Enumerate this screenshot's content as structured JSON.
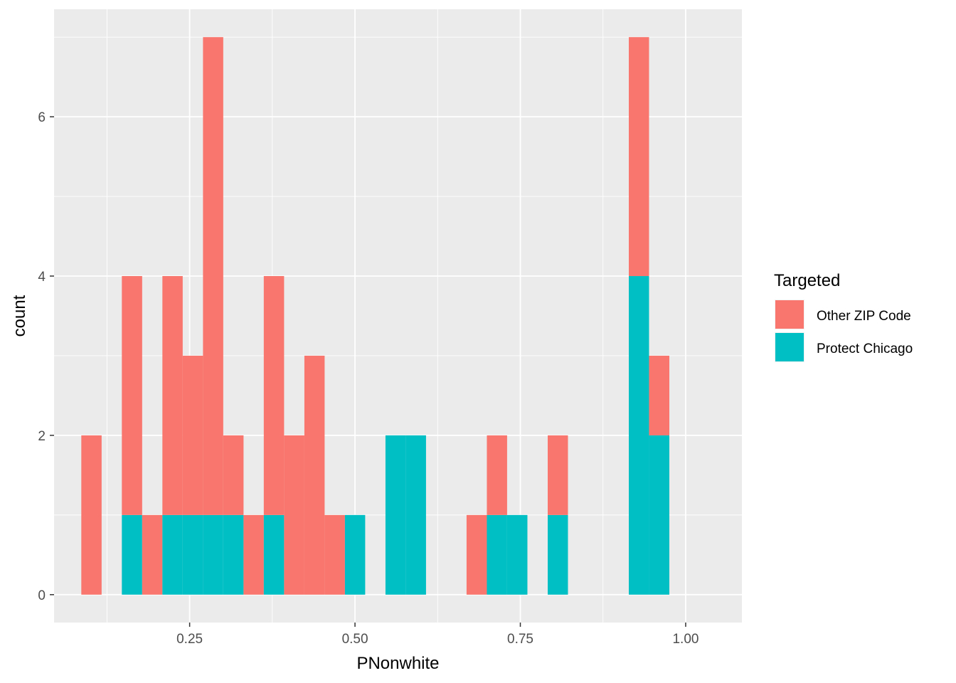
{
  "chart_data": {
    "type": "bar",
    "stacked": true,
    "xlabel": "PNonwhite",
    "ylabel": "count",
    "xlim": [
      0.045,
      1.085
    ],
    "ylim": [
      -0.35,
      7.35
    ],
    "x_ticks": [
      0.25,
      0.5,
      0.75,
      1.0
    ],
    "x_tick_labels": [
      "0.25",
      "0.50",
      "0.75",
      "1.00"
    ],
    "y_ticks": [
      0,
      2,
      4,
      6
    ],
    "y_tick_labels": [
      "0",
      "2",
      "4",
      "6"
    ],
    "grid": true,
    "bin_edges": [
      0.0862,
      0.1169,
      0.1475,
      0.1782,
      0.2088,
      0.2395,
      0.2702,
      0.3008,
      0.3315,
      0.3621,
      0.3928,
      0.4235,
      0.4541,
      0.4848,
      0.5154,
      0.5461,
      0.5767,
      0.6074,
      0.6381,
      0.6687,
      0.6994,
      0.73,
      0.7607,
      0.7914,
      0.822,
      0.8527,
      0.8833,
      0.914,
      0.9446,
      0.9753,
      1.006
    ],
    "series": [
      {
        "name": "Other ZIP Code",
        "color": "#F8766D",
        "values": [
          2,
          0,
          3,
          1,
          3,
          2,
          6,
          1,
          1,
          3,
          2,
          3,
          1,
          0,
          0,
          0,
          0,
          0,
          0,
          1,
          1,
          0,
          0,
          1,
          0,
          0,
          0,
          3,
          1,
          0
        ]
      },
      {
        "name": "Protect Chicago",
        "color": "#00BFC4",
        "values": [
          0,
          0,
          1,
          0,
          1,
          1,
          1,
          1,
          0,
          1,
          0,
          0,
          0,
          1,
          0,
          2,
          2,
          0,
          0,
          0,
          1,
          1,
          0,
          1,
          0,
          0,
          0,
          4,
          2,
          0
        ]
      }
    ],
    "legend": {
      "title": "Targeted",
      "placement": "right",
      "entries": [
        "Other ZIP Code",
        "Protect Chicago"
      ]
    },
    "colors": {
      "panel_background": "#EBEBEB",
      "grid": "#FFFFFF",
      "other_zip": "#F8766D",
      "protect_chicago": "#00BFC4"
    }
  }
}
